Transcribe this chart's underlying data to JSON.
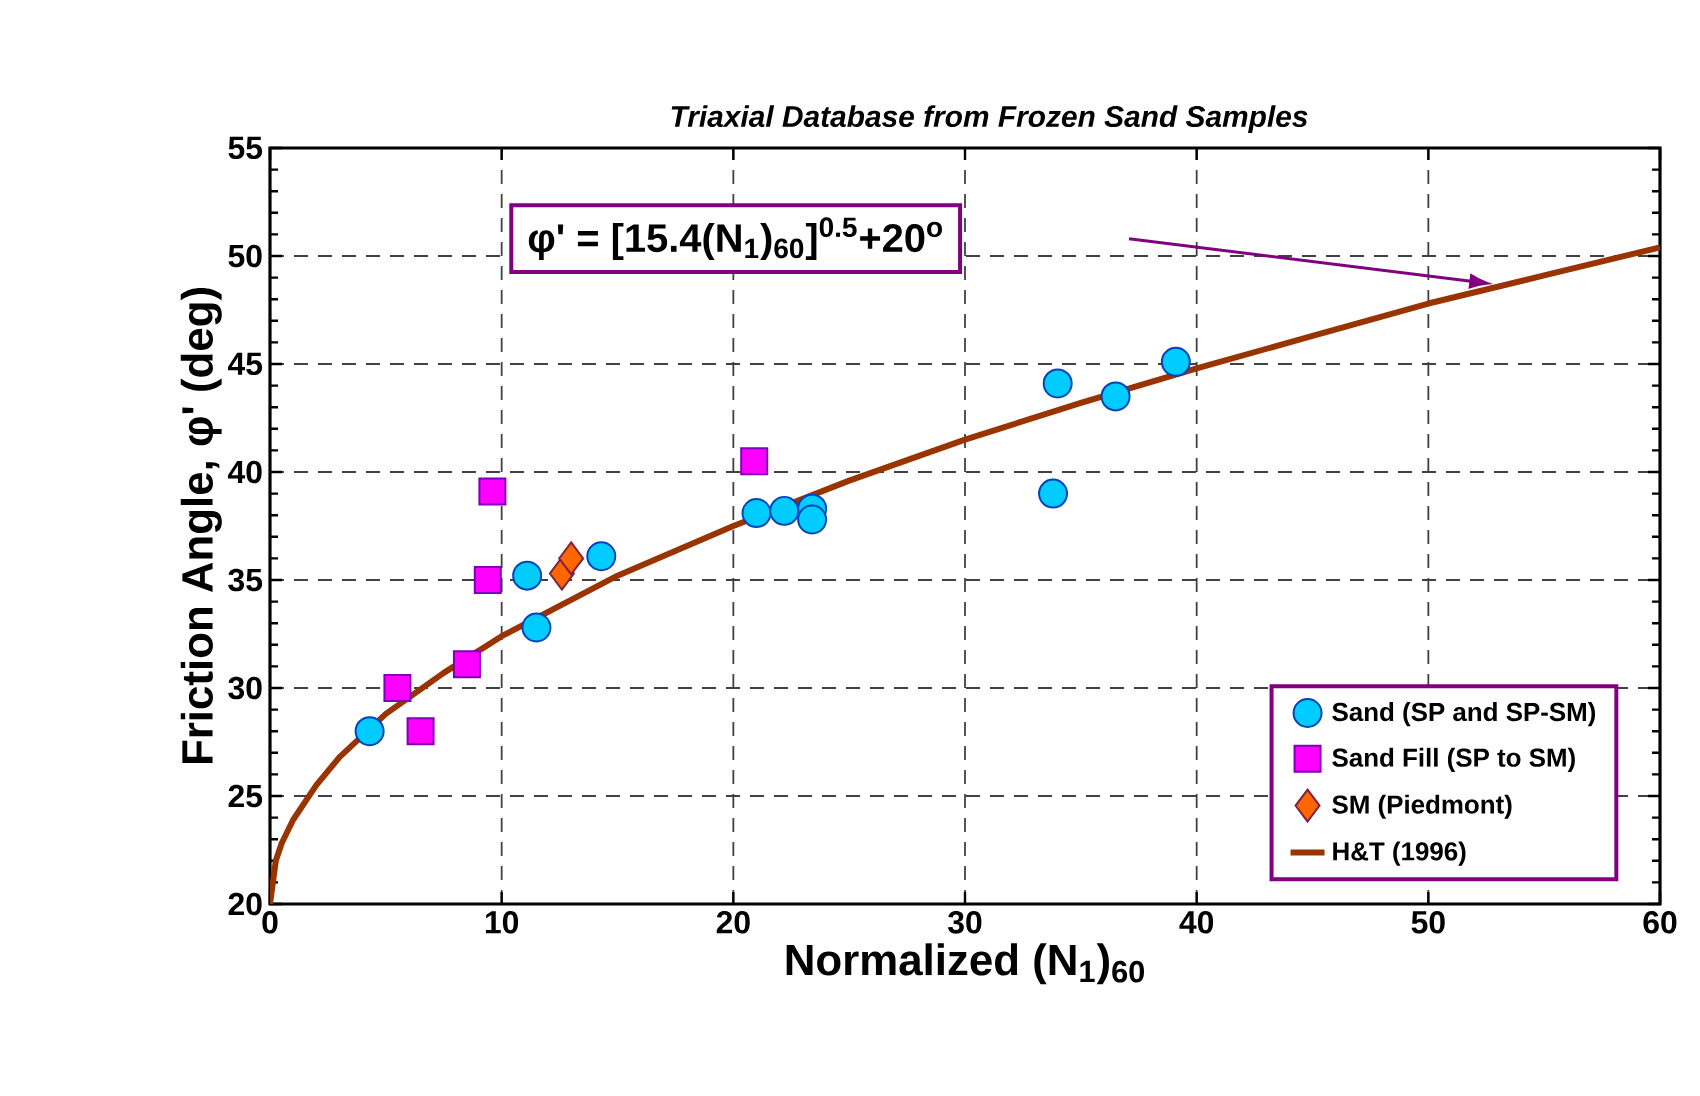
{
  "chart_data": {
    "type": "scatter",
    "title": "Triaxial Database from Frozen Sand Samples",
    "xlabel": "Normalized (N$_{1}$)$_{60}$",
    "ylabel": "Friction Angle, φ' (deg)",
    "xlim": [
      0,
      60
    ],
    "ylim": [
      20,
      55
    ],
    "xticks": [
      0,
      10,
      20,
      30,
      40,
      50,
      60
    ],
    "yticks": [
      20,
      25,
      30,
      35,
      40,
      45,
      50,
      55
    ],
    "grid": true,
    "legend": "bottom right",
    "annotations": [
      "φ' = [15.4(N$_{1}$)$_{60}$]$^{0.5}$+20$^{o}$"
    ],
    "series": [
      {
        "name": "Sand (SP and SP-SM)",
        "marker": "circle",
        "color": "#00ccff",
        "x": [
          4.3,
          11.1,
          11.5,
          14.3,
          21.0,
          22.2,
          23.4,
          23.4,
          34.0,
          36.5,
          39.1,
          33.8
        ],
        "values": [
          28.0,
          35.2,
          32.8,
          36.1,
          38.1,
          38.2,
          38.3,
          37.8,
          44.1,
          43.5,
          45.1,
          39.0
        ]
      },
      {
        "name": "Sand Fill (SP to SM)",
        "marker": "square",
        "color": "#ff00ff",
        "x": [
          9.6,
          9.4,
          5.5,
          6.5,
          8.5,
          20.9
        ],
        "values": [
          39.1,
          35.0,
          30.0,
          28.0,
          31.1,
          40.5
        ]
      },
      {
        "name": "SM (Piedmont)",
        "marker": "diamond",
        "color": "#ff6600",
        "x": [
          12.6,
          13.0
        ],
        "values": [
          35.3,
          36.0
        ]
      },
      {
        "name": "H&T (1996)",
        "type": "line",
        "marker": "none",
        "color": "#993300",
        "x": [
          0,
          0.25,
          0.5,
          1,
          2,
          3,
          5,
          7.5,
          10,
          15,
          20,
          25,
          30,
          35,
          40,
          45,
          50,
          55,
          60
        ],
        "values": [
          20,
          22.0,
          22.8,
          23.9,
          25.5,
          26.8,
          28.8,
          30.7,
          32.4,
          35.2,
          37.5,
          39.6,
          41.5,
          43.2,
          44.8,
          46.3,
          47.8,
          49.1,
          50.4
        ]
      }
    ]
  }
}
